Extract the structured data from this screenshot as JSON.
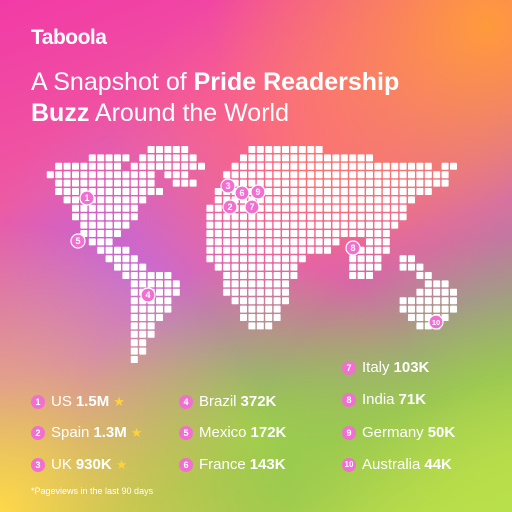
{
  "brand": {
    "logo": "Taboola"
  },
  "title": {
    "part1": "A Snapshot of ",
    "bold1": "Pride Readership",
    "bold2": "Buzz",
    "part2": " Around the World"
  },
  "colors": {
    "badge": "#f06fd0",
    "star": "#ffd23a",
    "text": "#ffffff"
  },
  "map_markers": [
    {
      "num": "1",
      "country": "US"
    },
    {
      "num": "2",
      "country": "Spain"
    },
    {
      "num": "3",
      "country": "UK"
    },
    {
      "num": "4",
      "country": "Brazil"
    },
    {
      "num": "5",
      "country": "Mexico"
    },
    {
      "num": "6",
      "country": "France"
    },
    {
      "num": "7",
      "country": "Italy"
    },
    {
      "num": "8",
      "country": "India"
    },
    {
      "num": "9",
      "country": "Germany"
    },
    {
      "num": "10",
      "country": "Australia"
    }
  ],
  "legend": [
    {
      "num": "1",
      "name": "US",
      "value": "1.5M",
      "star": true
    },
    {
      "num": "2",
      "name": "Spain",
      "value": "1.3M",
      "star": true
    },
    {
      "num": "3",
      "name": "UK",
      "value": "930K",
      "star": true
    },
    {
      "num": "4",
      "name": "Brazil",
      "value": "372K",
      "star": false
    },
    {
      "num": "5",
      "name": "Mexico",
      "value": "172K",
      "star": false
    },
    {
      "num": "6",
      "name": "France",
      "value": "143K",
      "star": false
    },
    {
      "num": "7",
      "name": "Italy",
      "value": "103K",
      "star": false
    },
    {
      "num": "8",
      "name": "India",
      "value": "71K",
      "star": false
    },
    {
      "num": "9",
      "name": "Germany",
      "value": "50K",
      "star": false
    },
    {
      "num": "10",
      "name": "Australia",
      "value": "44K",
      "star": false
    }
  ],
  "footnote": "*Pageviews in the last 90 days"
}
